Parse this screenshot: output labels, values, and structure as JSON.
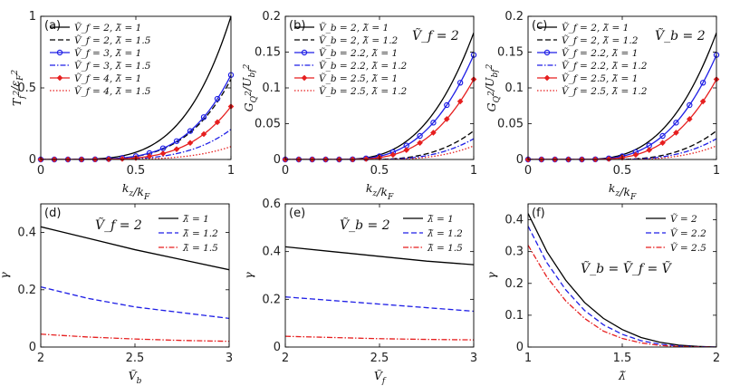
{
  "figure": {
    "width": 817,
    "height": 426
  },
  "chart_data": [
    {
      "id": "a",
      "type": "line",
      "panel_label": "(a)",
      "xlabel": "k_z/k_F",
      "ylabel": "T_f^2/ε_F^2",
      "xlim": [
        0,
        1
      ],
      "ylim": [
        0,
        1
      ],
      "xticks": [
        0,
        0.5,
        1
      ],
      "yticks": [
        0,
        0.5,
        1
      ],
      "xtick_labels": [
        "0",
        "0.5",
        "1"
      ],
      "ytick_labels": [
        "0",
        "0.5",
        "1"
      ],
      "annotation": "",
      "legend_position": "top-left",
      "series": [
        {
          "name": "Ṽ_f = 2, λ̃ = 1",
          "color": "#000000",
          "dash": "solid",
          "marker": "none",
          "start": 0.05,
          "end": 1.0,
          "power": 4
        },
        {
          "name": "Ṽ_f = 2, λ̃ = 1.5",
          "color": "#000000",
          "dash": "dashed",
          "marker": "none",
          "start": 0.1,
          "end": 0.56,
          "power": 4
        },
        {
          "name": "Ṽ_f = 3, λ̃ = 1",
          "color": "#1f1fe6",
          "dash": "solid",
          "marker": "circle",
          "start": 0.1,
          "end": 0.59,
          "power": 4
        },
        {
          "name": "Ṽ_f = 3, λ̃ = 1.5",
          "color": "#1f1fe6",
          "dash": "dashdot",
          "marker": "none",
          "start": 0.15,
          "end": 0.21,
          "power": 4
        },
        {
          "name": "Ṽ_f = 4, λ̃ = 1",
          "color": "#e61f1f",
          "dash": "solid",
          "marker": "diamond",
          "start": 0.15,
          "end": 0.37,
          "power": 4
        },
        {
          "name": "Ṽ_f = 4, λ̃ = 1.5",
          "color": "#e61f1f",
          "dash": "dotted",
          "marker": "none",
          "start": 0.2,
          "end": 0.09,
          "power": 4
        }
      ]
    },
    {
      "id": "b",
      "type": "line",
      "panel_label": "(b)",
      "xlabel": "k_z/k_F",
      "ylabel": "G_Q^2/U_bf^2",
      "xlim": [
        0,
        1
      ],
      "ylim": [
        0,
        0.2
      ],
      "xticks": [
        0,
        0.5,
        1
      ],
      "yticks": [
        0,
        0.05,
        0.1,
        0.15,
        0.2
      ],
      "xtick_labels": [
        "0",
        "0.5",
        "1"
      ],
      "ytick_labels": [
        "0",
        "0.05",
        "0.1",
        "0.15",
        "0.2"
      ],
      "annotation": "Ṽ_f = 2",
      "legend_position": "top-left",
      "series": [
        {
          "name": "Ṽ_b = 2, λ̃ = 1",
          "color": "#000000",
          "dash": "solid",
          "marker": "none",
          "start": 0.25,
          "end": 0.177,
          "power": 3
        },
        {
          "name": "Ṽ_b = 2, λ̃ = 1.2",
          "color": "#000000",
          "dash": "dashed",
          "marker": "none",
          "start": 0.4,
          "end": 0.04,
          "power": 3
        },
        {
          "name": "Ṽ_b = 2.2, λ̃ = 1",
          "color": "#1f1fe6",
          "dash": "solid",
          "marker": "circle",
          "start": 0.27,
          "end": 0.146,
          "power": 3
        },
        {
          "name": "Ṽ_b = 2.2, λ̃ = 1.2",
          "color": "#1f1fe6",
          "dash": "dashdot",
          "marker": "none",
          "start": 0.42,
          "end": 0.029,
          "power": 3
        },
        {
          "name": "Ṽ_b = 2.5, λ̃ = 1",
          "color": "#e61f1f",
          "dash": "solid",
          "marker": "diamond",
          "start": 0.3,
          "end": 0.112,
          "power": 3
        },
        {
          "name": "Ṽ_b = 2.5, λ̃ = 1.2",
          "color": "#e61f1f",
          "dash": "dotted",
          "marker": "none",
          "start": 0.45,
          "end": 0.019,
          "power": 3
        }
      ]
    },
    {
      "id": "c",
      "type": "line",
      "panel_label": "(c)",
      "xlabel": "k_z/k_F",
      "ylabel": "G_Q^2/U_bf^2",
      "xlim": [
        0,
        1
      ],
      "ylim": [
        0,
        0.2
      ],
      "xticks": [
        0,
        0.5,
        1
      ],
      "yticks": [
        0,
        0.05,
        0.1,
        0.15,
        0.2
      ],
      "xtick_labels": [
        "0",
        "0.5",
        "1"
      ],
      "ytick_labels": [
        "0",
        "0.05",
        "0.1",
        "0.15",
        "0.2"
      ],
      "annotation": "Ṽ_b = 2",
      "legend_position": "top-left",
      "series": [
        {
          "name": "Ṽ_f = 2, λ̃ = 1",
          "color": "#000000",
          "dash": "solid",
          "marker": "none",
          "start": 0.25,
          "end": 0.177,
          "power": 3
        },
        {
          "name": "Ṽ_f = 2, λ̃ = 1.2",
          "color": "#000000",
          "dash": "dashed",
          "marker": "none",
          "start": 0.4,
          "end": 0.04,
          "power": 3
        },
        {
          "name": "Ṽ_f = 2.2, λ̃ = 1",
          "color": "#1f1fe6",
          "dash": "solid",
          "marker": "circle",
          "start": 0.27,
          "end": 0.146,
          "power": 3
        },
        {
          "name": "Ṽ_f = 2.2, λ̃ = 1.2",
          "color": "#1f1fe6",
          "dash": "dashdot",
          "marker": "none",
          "start": 0.42,
          "end": 0.029,
          "power": 3
        },
        {
          "name": "Ṽ_f = 2.5, λ̃ = 1",
          "color": "#e61f1f",
          "dash": "solid",
          "marker": "diamond",
          "start": 0.3,
          "end": 0.112,
          "power": 3
        },
        {
          "name": "Ṽ_f = 2.5, λ̃ = 1.2",
          "color": "#e61f1f",
          "dash": "dotted",
          "marker": "none",
          "start": 0.45,
          "end": 0.019,
          "power": 3
        }
      ]
    },
    {
      "id": "d",
      "type": "line",
      "panel_label": "(d)",
      "xlabel": "Ṽ_b",
      "ylabel": "γ",
      "xlim": [
        2,
        3
      ],
      "ylim": [
        0,
        0.5
      ],
      "xticks": [
        2,
        2.5,
        3
      ],
      "yticks": [
        0,
        0.2,
        0.4
      ],
      "xtick_labels": [
        "2",
        "2.5",
        "3"
      ],
      "ytick_labels": [
        "0",
        "0.2",
        "0.4"
      ],
      "annotation": "Ṽ_f = 2",
      "legend_position": "top-right",
      "series": [
        {
          "name": "λ̃ = 1",
          "color": "#000000",
          "dash": "solid",
          "marker": "none",
          "x": [
            2,
            2.25,
            2.5,
            2.75,
            3
          ],
          "y": [
            0.42,
            0.38,
            0.34,
            0.305,
            0.27
          ]
        },
        {
          "name": "λ̃ = 1.2",
          "color": "#1f1fe6",
          "dash": "dashed",
          "marker": "none",
          "x": [
            2,
            2.25,
            2.5,
            2.75,
            3
          ],
          "y": [
            0.21,
            0.17,
            0.14,
            0.12,
            0.1
          ]
        },
        {
          "name": "λ̃ = 1.5",
          "color": "#e61f1f",
          "dash": "dashdot",
          "marker": "none",
          "x": [
            2,
            2.25,
            2.5,
            2.75,
            3
          ],
          "y": [
            0.045,
            0.035,
            0.028,
            0.023,
            0.02
          ]
        }
      ]
    },
    {
      "id": "e",
      "type": "line",
      "panel_label": "(e)",
      "xlabel": "Ṽ_f",
      "ylabel": "γ",
      "xlim": [
        2,
        3
      ],
      "ylim": [
        0,
        0.6
      ],
      "xticks": [
        2,
        2.5,
        3
      ],
      "yticks": [
        0,
        0.2,
        0.4,
        0.6
      ],
      "xtick_labels": [
        "2",
        "2.5",
        "3"
      ],
      "ytick_labels": [
        "0",
        "0.2",
        "0.4",
        "0.6"
      ],
      "annotation": "Ṽ_b = 2",
      "legend_position": "top-right",
      "series": [
        {
          "name": "λ̃ = 1",
          "color": "#000000",
          "dash": "solid",
          "marker": "none",
          "x": [
            2,
            2.25,
            2.5,
            2.75,
            3
          ],
          "y": [
            0.42,
            0.4,
            0.38,
            0.36,
            0.345
          ]
        },
        {
          "name": "λ̃ = 1.2",
          "color": "#1f1fe6",
          "dash": "dashed",
          "marker": "none",
          "x": [
            2,
            2.25,
            2.5,
            2.75,
            3
          ],
          "y": [
            0.21,
            0.195,
            0.18,
            0.165,
            0.15
          ]
        },
        {
          "name": "λ̃ = 1.5",
          "color": "#e61f1f",
          "dash": "dashdot",
          "marker": "none",
          "x": [
            2,
            2.25,
            2.5,
            2.75,
            3
          ],
          "y": [
            0.045,
            0.04,
            0.035,
            0.032,
            0.03
          ]
        }
      ]
    },
    {
      "id": "f",
      "type": "line",
      "panel_label": "(f)",
      "xlabel": "λ̃",
      "ylabel": "γ",
      "xlim": [
        1,
        2
      ],
      "ylim": [
        0,
        0.45
      ],
      "xticks": [
        1,
        1.5,
        2
      ],
      "yticks": [
        0,
        0.1,
        0.2,
        0.3,
        0.4
      ],
      "xtick_labels": [
        "1",
        "1.5",
        "2"
      ],
      "ytick_labels": [
        "0",
        "0.1",
        "0.2",
        "0.3",
        "0.4"
      ],
      "annotation": "Ṽ_b = Ṽ_f = Ṽ",
      "legend_position": "top-right",
      "series": [
        {
          "name": "Ṽ = 2",
          "color": "#000000",
          "dash": "solid",
          "marker": "none",
          "x": [
            1,
            1.1,
            1.2,
            1.3,
            1.4,
            1.5,
            1.6,
            1.7,
            1.8,
            1.9,
            2
          ],
          "y": [
            0.42,
            0.3,
            0.21,
            0.14,
            0.09,
            0.055,
            0.03,
            0.015,
            0.006,
            0.002,
            0
          ]
        },
        {
          "name": "Ṽ = 2.2",
          "color": "#1f1fe6",
          "dash": "dashed",
          "marker": "none",
          "x": [
            1,
            1.1,
            1.2,
            1.3,
            1.4,
            1.5,
            1.6,
            1.7,
            1.8,
            1.9,
            2
          ],
          "y": [
            0.38,
            0.265,
            0.18,
            0.115,
            0.07,
            0.04,
            0.02,
            0.009,
            0.003,
            0.001,
            0
          ]
        },
        {
          "name": "Ṽ = 2.5",
          "color": "#e61f1f",
          "dash": "dashdot",
          "marker": "none",
          "x": [
            1,
            1.1,
            1.2,
            1.3,
            1.4,
            1.5,
            1.6,
            1.7,
            1.8,
            1.9,
            2
          ],
          "y": [
            0.32,
            0.22,
            0.145,
            0.09,
            0.05,
            0.027,
            0.013,
            0.005,
            0.002,
            0.0005,
            0
          ]
        }
      ]
    }
  ]
}
